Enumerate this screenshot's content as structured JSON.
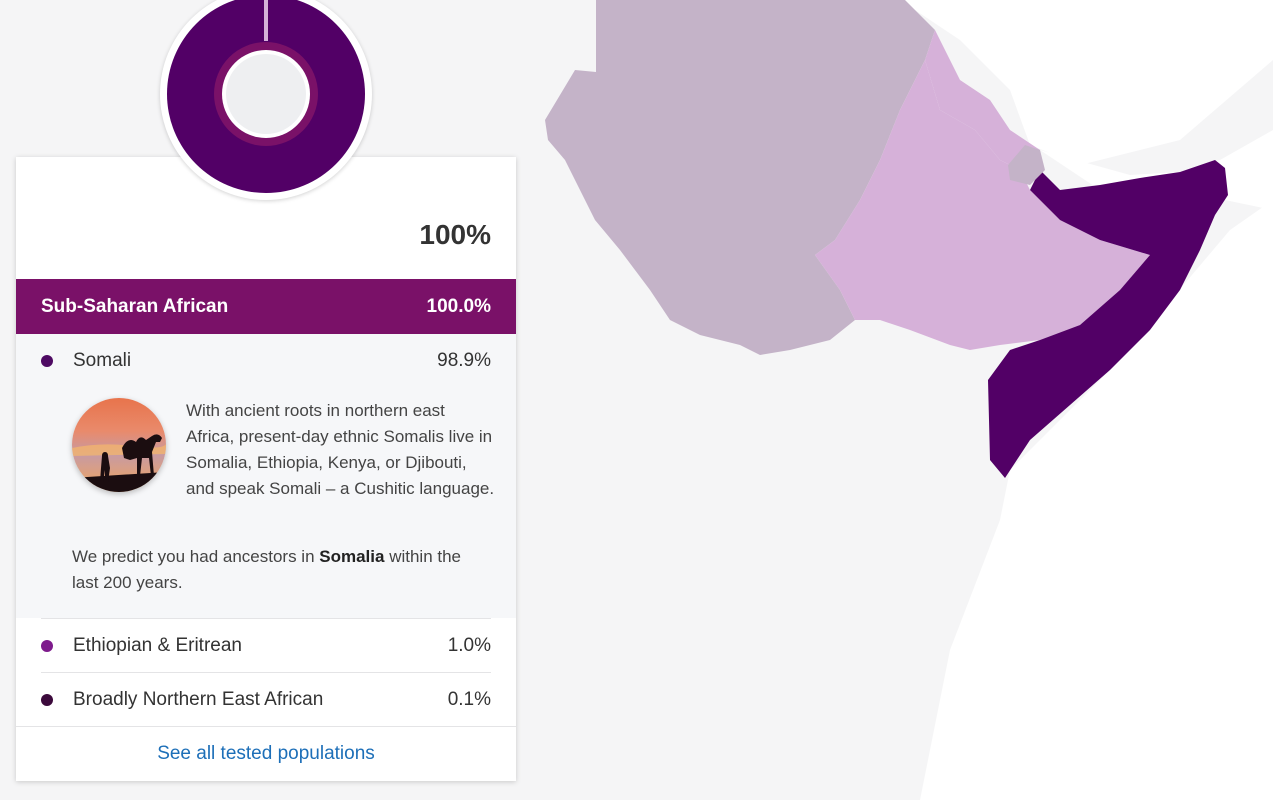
{
  "summary": {
    "total": "100%"
  },
  "region": {
    "name": "Sub-Saharan African",
    "percent": "100.0%"
  },
  "populations": [
    {
      "name": "Somali",
      "percent": "98.9%",
      "color": "#4e0a63",
      "expanded": true,
      "description": "With ancient roots in northern east Africa, present-day ethnic Somalis live in Somalia, Ethiopia, Kenya, or Djibouti, and speak Somali – a Cushitic language.",
      "prediction": {
        "before": "We predict you had ancestors in ",
        "place": "Somalia",
        "after": " within the last 200 years."
      }
    },
    {
      "name": "Ethiopian & Eritrean",
      "percent": "1.0%",
      "color": "#7e1b8c"
    },
    {
      "name": "Broadly Northern East African",
      "percent": "0.1%",
      "color": "#3c0a3c"
    }
  ],
  "link": {
    "see_all": "See all tested populations"
  },
  "colors": {
    "region_bar": "#7a1168",
    "somali": "#520066",
    "ethiopian": "#d6b1d9",
    "sudan_region": "#c4b3c8",
    "link": "#1d6fb8"
  },
  "icons": {
    "avatar": "camel-sunset-photo"
  }
}
